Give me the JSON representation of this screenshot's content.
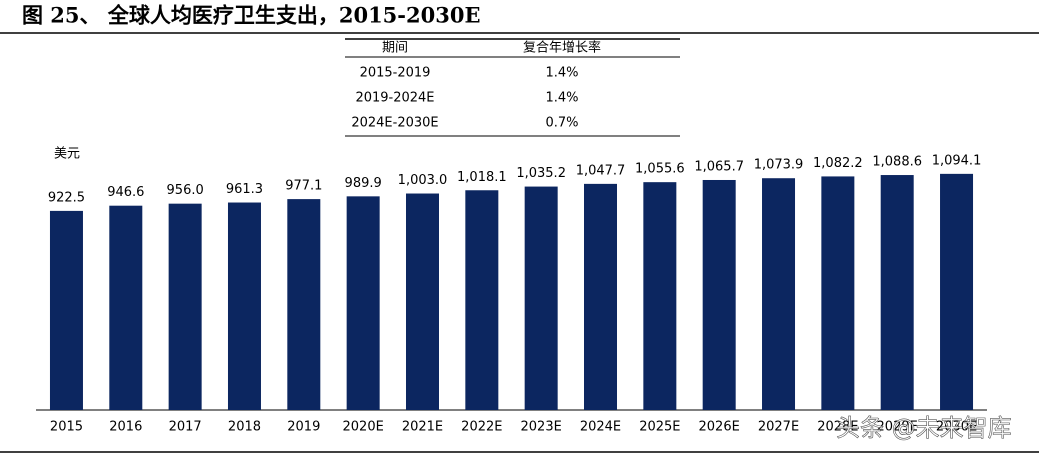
{
  "chart_data": {
    "type": "bar",
    "title": "图 25、 全球人均医疗卫生支出，2015-2030E",
    "y_label": "美元",
    "categories": [
      "2015",
      "2016",
      "2017",
      "2018",
      "2019",
      "2020E",
      "2021E",
      "2022E",
      "2023E",
      "2024E",
      "2025E",
      "2026E",
      "2027E",
      "2028E",
      "2029E",
      "2030E"
    ],
    "values": [
      922.5,
      946.6,
      956.0,
      961.3,
      977.1,
      989.9,
      1003.0,
      1018.1,
      1035.2,
      1047.7,
      1055.6,
      1065.7,
      1073.9,
      1082.2,
      1088.6,
      1094.1
    ],
    "value_labels": [
      "922.5",
      "946.6",
      "956.0",
      "961.3",
      "977.1",
      "989.9",
      "1,003.0",
      "1,018.1",
      "1,035.2",
      "1,047.7",
      "1,055.6",
      "1,065.7",
      "1,073.9",
      "1,082.2",
      "1,088.6",
      "1,094.1"
    ],
    "color": "#0c2660",
    "ylim": [
      0,
      1200
    ]
  },
  "table": {
    "columns": [
      "期间",
      "复合年增长率"
    ],
    "rows": [
      [
        "2015-2019",
        "1.4%"
      ],
      [
        "2019-2024E",
        "1.4%"
      ],
      [
        "2024E-2030E",
        "0.7%"
      ]
    ]
  },
  "watermark": "头条 @未来智库"
}
